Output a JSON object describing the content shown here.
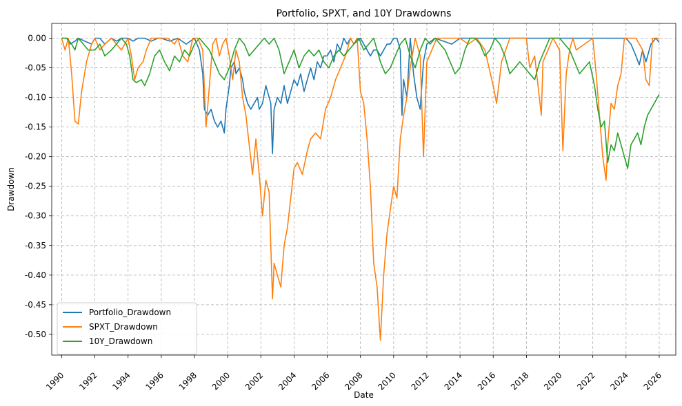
{
  "chart_data": {
    "type": "line",
    "title": "Portfolio, SPXT, and 10Y Drawdowns",
    "xlabel": "Date",
    "ylabel": "Drawdown",
    "xlim": [
      1989.4,
      2027.0
    ],
    "ylim": [
      -0.535,
      0.025
    ],
    "x_ticks": [
      1990,
      1992,
      1994,
      1996,
      1998,
      2000,
      2002,
      2004,
      2006,
      2008,
      2010,
      2012,
      2014,
      2016,
      2018,
      2020,
      2022,
      2024,
      2026
    ],
    "x_tick_labels": [
      "1990",
      "1992",
      "1994",
      "1996",
      "1998",
      "2000",
      "2002",
      "2004",
      "2006",
      "2008",
      "2010",
      "2012",
      "2014",
      "2016",
      "2018",
      "2020",
      "2022",
      "2024",
      "2026"
    ],
    "y_ticks": [
      0.0,
      -0.05,
      -0.1,
      -0.15,
      -0.2,
      -0.25,
      -0.3,
      -0.35,
      -0.4,
      -0.45,
      -0.5
    ],
    "y_tick_labels": [
      "0.00",
      "-0.05",
      "-0.10",
      "-0.15",
      "-0.20",
      "-0.25",
      "-0.30",
      "-0.35",
      "-0.40",
      "-0.45",
      "-0.50"
    ],
    "grid": true,
    "legend_position": "lower-left",
    "series": [
      {
        "name": "Portfolio_Drawdown",
        "color": "#1f77b4",
        "x": [
          1990.0,
          1990.3,
          1990.5,
          1990.8,
          1991.0,
          1991.4,
          1991.8,
          1992.0,
          1992.3,
          1992.6,
          1993.0,
          1993.3,
          1993.6,
          1994.0,
          1994.3,
          1994.6,
          1995.0,
          1995.4,
          1995.8,
          1996.0,
          1996.5,
          1997.0,
          1997.5,
          1998.0,
          1998.3,
          1998.5,
          1998.6,
          1998.8,
          1999.0,
          1999.2,
          1999.4,
          1999.6,
          1999.8,
          1999.9,
          2000.1,
          2000.2,
          2000.4,
          2000.5,
          2000.7,
          2000.9,
          2001.0,
          2001.2,
          2001.4,
          2001.6,
          2001.8,
          2001.9,
          2002.1,
          2002.3,
          2002.5,
          2002.6,
          2002.7,
          2002.8,
          2003.0,
          2003.2,
          2003.4,
          2003.6,
          2003.8,
          2004.0,
          2004.2,
          2004.4,
          2004.6,
          2004.8,
          2005.0,
          2005.2,
          2005.4,
          2005.6,
          2005.8,
          2006.0,
          2006.2,
          2006.4,
          2006.6,
          2006.8,
          2007.0,
          2007.2,
          2007.4,
          2007.6,
          2007.8,
          2008.0,
          2008.2,
          2008.4,
          2008.6,
          2008.8,
          2009.0,
          2009.2,
          2009.4,
          2009.6,
          2009.8,
          2010.0,
          2010.2,
          2010.4,
          2010.5,
          2010.6,
          2010.8,
          2011.0,
          2011.2,
          2011.4,
          2011.6,
          2011.8,
          2012.0,
          2012.5,
          2013.0,
          2013.5,
          2014.0,
          2015.0,
          2016.0,
          2017.0,
          2018.0,
          2019.0,
          2020.0,
          2021.0,
          2022.0,
          2022.5,
          2023.0,
          2023.5,
          2024.0,
          2024.3,
          2024.6,
          2024.8,
          2025.0,
          2025.2,
          2025.5,
          2025.8,
          2026.0
        ],
        "values": [
          0.0,
          0.0,
          -0.01,
          -0.005,
          0.0,
          -0.005,
          -0.01,
          0.0,
          0.0,
          -0.01,
          0.0,
          -0.005,
          0.0,
          0.0,
          -0.005,
          0.0,
          0.0,
          -0.005,
          0.0,
          0.0,
          -0.005,
          0.0,
          -0.01,
          0.0,
          -0.02,
          -0.06,
          -0.12,
          -0.13,
          -0.12,
          -0.14,
          -0.15,
          -0.14,
          -0.16,
          -0.12,
          -0.08,
          -0.05,
          -0.04,
          -0.06,
          -0.05,
          -0.07,
          -0.09,
          -0.11,
          -0.12,
          -0.11,
          -0.1,
          -0.12,
          -0.11,
          -0.08,
          -0.1,
          -0.11,
          -0.195,
          -0.12,
          -0.1,
          -0.11,
          -0.08,
          -0.11,
          -0.09,
          -0.07,
          -0.08,
          -0.06,
          -0.09,
          -0.07,
          -0.05,
          -0.07,
          -0.04,
          -0.05,
          -0.03,
          -0.03,
          -0.02,
          -0.04,
          -0.01,
          -0.02,
          0.0,
          -0.01,
          0.0,
          -0.01,
          -0.005,
          0.0,
          -0.01,
          -0.02,
          -0.03,
          -0.02,
          -0.02,
          -0.03,
          -0.02,
          -0.01,
          -0.01,
          0.0,
          0.0,
          -0.02,
          -0.13,
          -0.07,
          -0.1,
          0.0,
          -0.06,
          -0.1,
          -0.12,
          -0.04,
          -0.01,
          0.0,
          -0.005,
          -0.01,
          0.0,
          0.0,
          0.0,
          0.0,
          0.0,
          0.0,
          0.0,
          0.0,
          0.0,
          0.0,
          0.0,
          0.0,
          0.0,
          -0.01,
          -0.03,
          -0.045,
          -0.02,
          -0.04,
          -0.01,
          0.0,
          -0.007
        ]
      },
      {
        "name": "SPXT_Drawdown",
        "color": "#ff7f0e",
        "x": [
          1990.0,
          1990.2,
          1990.4,
          1990.6,
          1990.8,
          1991.0,
          1991.2,
          1991.5,
          1991.8,
          1992.0,
          1992.3,
          1992.6,
          1993.0,
          1993.3,
          1993.6,
          1994.0,
          1994.2,
          1994.4,
          1994.6,
          1994.9,
          1995.1,
          1995.4,
          1995.7,
          1996.0,
          1996.4,
          1996.8,
          1997.0,
          1997.3,
          1997.6,
          1997.9,
          1998.2,
          1998.5,
          1998.7,
          1998.9,
          1999.1,
          1999.3,
          1999.5,
          1999.7,
          1999.9,
          2000.1,
          2000.3,
          2000.5,
          2000.7,
          2000.9,
          2001.1,
          2001.3,
          2001.5,
          2001.7,
          2001.9,
          2002.1,
          2002.3,
          2002.5,
          2002.7,
          2002.8,
          2003.0,
          2003.2,
          2003.4,
          2003.6,
          2003.8,
          2004.0,
          2004.2,
          2004.5,
          2004.8,
          2005.0,
          2005.3,
          2005.6,
          2005.9,
          2006.2,
          2006.5,
          2006.8,
          2007.1,
          2007.4,
          2007.6,
          2007.8,
          2008.0,
          2008.2,
          2008.4,
          2008.6,
          2008.8,
          2009.0,
          2009.2,
          2009.4,
          2009.6,
          2009.8,
          2010.0,
          2010.2,
          2010.4,
          2010.6,
          2010.8,
          2011.0,
          2011.3,
          2011.6,
          2011.8,
          2012.0,
          2012.3,
          2012.6,
          2013.0,
          2013.5,
          2014.0,
          2014.5,
          2015.0,
          2015.5,
          2016.0,
          2016.2,
          2016.5,
          2017.0,
          2017.5,
          2018.0,
          2018.2,
          2018.5,
          2018.9,
          2019.0,
          2019.3,
          2019.6,
          2020.0,
          2020.2,
          2020.4,
          2020.6,
          2020.8,
          2021.0,
          2021.5,
          2022.0,
          2022.2,
          2022.4,
          2022.6,
          2022.8,
          2022.9,
          2023.1,
          2023.3,
          2023.5,
          2023.7,
          2023.9,
          2024.0,
          2024.3,
          2024.6,
          2025.0,
          2025.2,
          2025.4,
          2025.6,
          2026.0
        ],
        "values": [
          0.0,
          -0.02,
          0.0,
          -0.06,
          -0.14,
          -0.145,
          -0.09,
          -0.04,
          -0.01,
          0.0,
          -0.02,
          -0.01,
          0.0,
          -0.01,
          -0.02,
          0.0,
          -0.03,
          -0.07,
          -0.05,
          -0.04,
          -0.02,
          0.0,
          0.0,
          0.0,
          0.0,
          -0.01,
          0.0,
          -0.03,
          -0.04,
          0.0,
          0.0,
          -0.02,
          -0.15,
          -0.08,
          -0.01,
          0.0,
          -0.03,
          -0.01,
          0.0,
          -0.03,
          -0.07,
          -0.02,
          -0.04,
          -0.1,
          -0.13,
          -0.18,
          -0.23,
          -0.17,
          -0.23,
          -0.3,
          -0.24,
          -0.26,
          -0.44,
          -0.38,
          -0.4,
          -0.42,
          -0.35,
          -0.32,
          -0.27,
          -0.22,
          -0.21,
          -0.23,
          -0.19,
          -0.17,
          -0.16,
          -0.17,
          -0.12,
          -0.1,
          -0.07,
          -0.05,
          -0.03,
          0.0,
          -0.01,
          0.0,
          -0.09,
          -0.11,
          -0.17,
          -0.25,
          -0.38,
          -0.42,
          -0.51,
          -0.4,
          -0.33,
          -0.29,
          -0.25,
          -0.27,
          -0.17,
          -0.13,
          -0.1,
          -0.05,
          0.0,
          -0.03,
          -0.2,
          -0.04,
          -0.02,
          0.0,
          0.0,
          0.0,
          0.0,
          -0.01,
          0.0,
          -0.02,
          -0.08,
          -0.11,
          -0.04,
          0.0,
          0.0,
          0.0,
          -0.05,
          -0.03,
          -0.13,
          -0.04,
          -0.02,
          0.0,
          -0.02,
          -0.19,
          -0.06,
          -0.02,
          0.0,
          -0.02,
          -0.01,
          0.0,
          -0.06,
          -0.13,
          -0.2,
          -0.24,
          -0.18,
          -0.11,
          -0.12,
          -0.08,
          -0.06,
          0.0,
          0.0,
          0.0,
          0.0,
          -0.02,
          -0.07,
          -0.08,
          0.0,
          0.0
        ]
      },
      {
        "name": "10Y_Drawdown",
        "color": "#2ca02c",
        "x": [
          1990.0,
          1990.3,
          1990.6,
          1990.8,
          1991.0,
          1991.3,
          1991.6,
          1992.0,
          1992.3,
          1992.6,
          1993.0,
          1993.3,
          1993.6,
          1993.9,
          1994.1,
          1994.3,
          1994.5,
          1994.8,
          1995.0,
          1995.3,
          1995.6,
          1995.9,
          1996.2,
          1996.5,
          1996.8,
          1997.1,
          1997.4,
          1997.7,
          1998.0,
          1998.3,
          1998.6,
          1998.9,
          1999.2,
          1999.5,
          1999.8,
          2000.1,
          2000.4,
          2000.7,
          2001.0,
          2001.3,
          2001.6,
          2001.9,
          2002.2,
          2002.5,
          2002.8,
          2003.1,
          2003.4,
          2003.7,
          2004.0,
          2004.3,
          2004.6,
          2004.9,
          2005.2,
          2005.5,
          2005.8,
          2006.1,
          2006.4,
          2006.7,
          2007.0,
          2007.3,
          2007.6,
          2007.9,
          2008.2,
          2008.5,
          2008.8,
          2009.0,
          2009.2,
          2009.5,
          2009.8,
          2010.1,
          2010.4,
          2010.7,
          2011.0,
          2011.3,
          2011.6,
          2011.9,
          2012.2,
          2012.5,
          2012.8,
          2013.1,
          2013.4,
          2013.7,
          2014.0,
          2014.3,
          2014.6,
          2014.9,
          2015.2,
          2015.5,
          2015.8,
          2016.1,
          2016.4,
          2016.7,
          2017.0,
          2017.3,
          2017.6,
          2017.9,
          2018.2,
          2018.5,
          2018.8,
          2019.1,
          2019.4,
          2019.7,
          2020.0,
          2020.3,
          2020.6,
          2020.9,
          2021.2,
          2021.5,
          2021.8,
          2022.1,
          2022.3,
          2022.5,
          2022.7,
          2022.9,
          2023.1,
          2023.3,
          2023.5,
          2023.7,
          2023.9,
          2024.1,
          2024.3,
          2024.5,
          2024.7,
          2024.9,
          2025.1,
          2025.3,
          2025.5,
          2025.7,
          2026.0
        ],
        "values": [
          0.0,
          0.0,
          -0.01,
          -0.02,
          0.0,
          -0.01,
          -0.02,
          -0.02,
          -0.01,
          -0.03,
          -0.02,
          -0.01,
          0.0,
          -0.01,
          -0.03,
          -0.07,
          -0.075,
          -0.07,
          -0.08,
          -0.06,
          -0.03,
          -0.02,
          -0.04,
          -0.055,
          -0.03,
          -0.04,
          -0.02,
          -0.03,
          -0.01,
          0.0,
          -0.01,
          -0.02,
          -0.04,
          -0.06,
          -0.07,
          -0.05,
          -0.02,
          0.0,
          -0.01,
          -0.03,
          -0.02,
          -0.01,
          0.0,
          -0.01,
          0.0,
          -0.02,
          -0.06,
          -0.04,
          -0.02,
          -0.05,
          -0.03,
          -0.02,
          -0.03,
          -0.02,
          -0.04,
          -0.05,
          -0.03,
          -0.02,
          -0.03,
          -0.02,
          -0.01,
          0.0,
          -0.02,
          -0.01,
          0.0,
          -0.02,
          -0.04,
          -0.06,
          -0.05,
          -0.03,
          -0.01,
          0.0,
          -0.03,
          -0.05,
          -0.02,
          0.0,
          -0.01,
          0.0,
          -0.01,
          -0.02,
          -0.04,
          -0.06,
          -0.05,
          -0.02,
          0.0,
          0.0,
          -0.01,
          -0.03,
          -0.02,
          0.0,
          -0.01,
          -0.03,
          -0.06,
          -0.05,
          -0.04,
          -0.05,
          -0.06,
          -0.07,
          -0.04,
          -0.02,
          0.0,
          0.0,
          0.0,
          -0.01,
          -0.02,
          -0.04,
          -0.06,
          -0.05,
          -0.04,
          -0.08,
          -0.12,
          -0.15,
          -0.14,
          -0.21,
          -0.18,
          -0.19,
          -0.16,
          -0.18,
          -0.2,
          -0.22,
          -0.18,
          -0.17,
          -0.16,
          -0.18,
          -0.15,
          -0.13,
          -0.12,
          -0.11,
          -0.095
        ]
      }
    ]
  }
}
